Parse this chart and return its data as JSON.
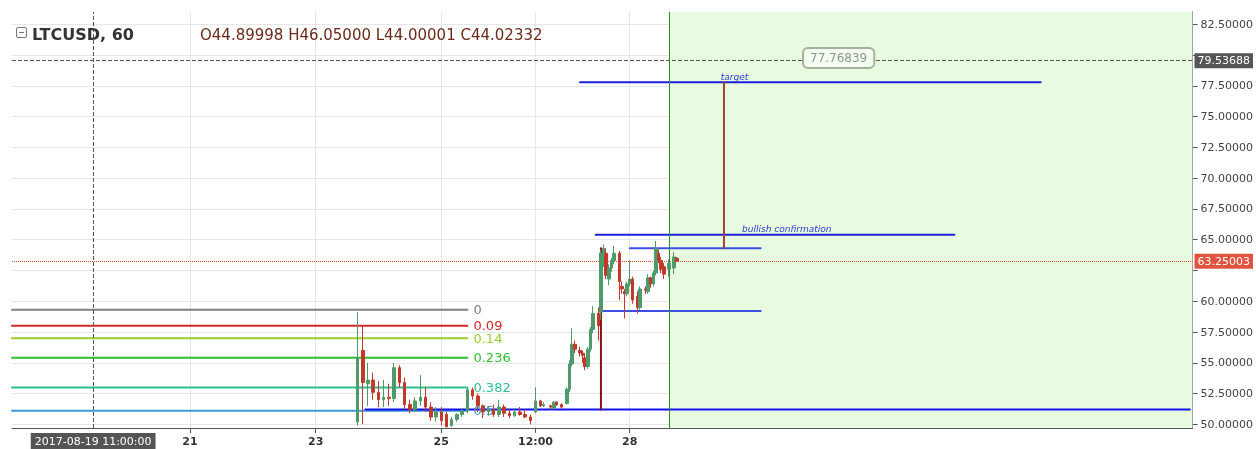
{
  "chart_data": {
    "type": "candlestick",
    "title": "LTCUSD, 60",
    "subtitle": "O44.89998 H46.05000 L44.00001 C44.02332",
    "xlim": [
      "2017-08-18T04:00",
      "2017-09-05T23:00"
    ],
    "xticks": [
      {
        "value": "2017-08-21T00:00",
        "label": "21"
      },
      {
        "value": "2017-08-23T00:00",
        "label": "23"
      },
      {
        "value": "2017-08-25T00:00",
        "label": "25"
      },
      {
        "value": "2017-08-26T12:00",
        "label": "12:00"
      },
      {
        "value": "2017-08-28T00:00",
        "label": "28"
      }
    ],
    "ylim": [
      49.7,
      83.5
    ],
    "yticks": [
      {
        "value": 50,
        "label": "50.00000"
      },
      {
        "value": 52.5,
        "label": "52.50000"
      },
      {
        "value": 55,
        "label": "55.00000"
      },
      {
        "value": 57.5,
        "label": "57.50000"
      },
      {
        "value": 60,
        "label": "60.00000"
      },
      {
        "value": 62.5,
        "label": null
      },
      {
        "value": 65,
        "label": "65.00000"
      },
      {
        "value": 67.5,
        "label": "67.50000"
      },
      {
        "value": 70,
        "label": "70.00000"
      },
      {
        "value": 72.5,
        "label": "72.50000"
      },
      {
        "value": 75,
        "label": "75.00000"
      },
      {
        "value": 77.5,
        "label": "77.50000"
      },
      {
        "value": 80,
        "label": null
      },
      {
        "value": 82.5,
        "label": "82.50000"
      }
    ],
    "grid": true,
    "legend": false,
    "marker": "none",
    "series": [
      {
        "x": [
          "2017-08-23T16:00",
          "2017-08-23T18:00",
          "2017-08-23T20:00",
          "2017-08-23T22:00",
          "2017-08-24T00:00",
          "2017-08-24T02:00",
          "2017-08-24T04:00",
          "2017-08-24T06:00",
          "2017-08-24T08:00",
          "2017-08-24T10:00",
          "2017-08-24T12:00",
          "2017-08-24T14:00",
          "2017-08-24T16:00",
          "2017-08-24T18:00",
          "2017-08-24T20:00",
          "2017-08-24T22:00",
          "2017-08-25T00:00",
          "2017-08-25T02:00",
          "2017-08-25T04:00",
          "2017-08-25T06:00",
          "2017-08-25T08:00",
          "2017-08-25T10:00",
          "2017-08-25T12:00",
          "2017-08-25T14:00",
          "2017-08-25T16:00",
          "2017-08-25T18:00",
          "2017-08-25T20:00",
          "2017-08-25T22:00",
          "2017-08-26T00:00",
          "2017-08-26T02:00",
          "2017-08-26T04:00",
          "2017-08-26T06:00",
          "2017-08-26T08:00",
          "2017-08-26T10:00",
          "2017-08-26T12:00",
          "2017-08-26T14:00",
          "2017-08-26T15:00",
          "2017-08-26T18:00",
          "2017-08-26T19:00",
          "2017-08-26T20:00",
          "2017-08-26T22:00",
          "2017-08-27T00:00",
          "2017-08-27T01:00",
          "2017-08-27T02:00",
          "2017-08-27T03:00",
          "2017-08-27T05:00",
          "2017-08-27T06:00",
          "2017-08-27T07:00",
          "2017-08-27T08:00",
          "2017-08-27T09:00",
          "2017-08-27T10:00",
          "2017-08-27T12:00",
          "2017-08-27T13:00",
          "2017-08-27T14:00",
          "2017-08-27T15:00",
          "2017-08-27T16:00",
          "2017-08-27T17:00",
          "2017-08-27T18:00",
          "2017-08-27T20:00",
          "2017-08-27T21:00",
          "2017-08-27T22:00",
          "2017-08-27T23:00",
          "2017-08-28T00:00",
          "2017-08-28T01:00",
          "2017-08-28T03:00",
          "2017-08-28T04:00",
          "2017-08-28T06:00",
          "2017-08-28T07:00",
          "2017-08-28T08:00",
          "2017-08-28T09:00",
          "2017-08-28T10:00",
          "2017-08-28T11:00",
          "2017-08-28T12:00",
          "2017-08-28T13:00",
          "2017-08-28T15:00",
          "2017-08-28T17:00",
          "2017-08-28T18:00"
        ],
        "ohlc": [
          [
            50.2,
            59.1,
            49.9,
            55.4
          ],
          [
            56.0,
            58.0,
            50.0,
            53.4
          ],
          [
            53.3,
            55.0,
            51.5,
            53.6
          ],
          [
            53.6,
            54.2,
            52.0,
            52.6
          ],
          [
            52.6,
            53.5,
            51.4,
            52.0
          ],
          [
            52.0,
            53.6,
            51.4,
            52.2
          ],
          [
            52.2,
            53.3,
            51.5,
            52.1
          ],
          [
            52.1,
            55.0,
            51.8,
            54.6
          ],
          [
            54.6,
            54.8,
            53.0,
            53.4
          ],
          [
            53.4,
            53.8,
            51.2,
            51.6
          ],
          [
            51.6,
            52.0,
            50.9,
            51.2
          ],
          [
            51.2,
            52.2,
            51.0,
            51.9
          ],
          [
            51.9,
            54.0,
            51.5,
            52.2
          ],
          [
            52.2,
            53.0,
            51.0,
            51.4
          ],
          [
            51.4,
            51.8,
            50.3,
            50.6
          ],
          [
            50.6,
            51.4,
            50.2,
            51.0
          ],
          [
            51.0,
            51.4,
            49.9,
            50.3
          ],
          [
            50.8,
            51.0,
            49.75,
            49.8
          ],
          [
            49.9,
            50.6,
            49.8,
            50.4
          ],
          [
            50.4,
            50.9,
            50.2,
            50.8
          ],
          [
            50.8,
            51.3,
            50.6,
            51.1
          ],
          [
            51.1,
            53.0,
            50.9,
            52.8
          ],
          [
            52.8,
            53.0,
            52.0,
            52.3
          ],
          [
            52.3,
            52.5,
            51.0,
            51.5
          ],
          [
            51.5,
            51.6,
            50.5,
            51.0
          ],
          [
            51.0,
            51.5,
            50.7,
            51.2
          ],
          [
            51.2,
            51.6,
            50.6,
            50.8
          ],
          [
            50.8,
            52.0,
            50.6,
            51.4
          ],
          [
            51.4,
            51.6,
            50.6,
            50.9
          ],
          [
            50.9,
            51.2,
            50.5,
            50.7
          ],
          [
            50.7,
            51.2,
            50.6,
            51.0
          ],
          [
            51.0,
            51.4,
            50.7,
            50.8
          ],
          [
            50.8,
            51.2,
            50.5,
            50.6
          ],
          [
            50.6,
            50.8,
            50.0,
            50.3
          ],
          [
            51.0,
            53.0,
            50.9,
            51.9
          ],
          [
            51.9,
            52.0,
            51.4,
            51.5
          ],
          [
            51.5,
            51.8,
            51.4,
            51.6
          ],
          [
            51.5,
            51.6,
            51.2,
            51.4
          ],
          [
            51.3,
            51.9,
            51.2,
            51.8
          ],
          [
            51.8,
            51.9,
            51.5,
            51.6
          ],
          [
            51.6,
            51.7,
            51.3,
            51.4
          ],
          [
            51.7,
            53.0,
            51.6,
            52.85
          ],
          [
            52.85,
            55.2,
            52.6,
            54.9
          ],
          [
            54.9,
            57.8,
            54.7,
            56.5
          ],
          [
            56.5,
            56.8,
            55.8,
            56.1
          ],
          [
            56.0,
            56.3,
            55.5,
            55.8
          ],
          [
            55.8,
            56.0,
            55.0,
            55.6
          ],
          [
            55.4,
            55.8,
            54.4,
            54.7
          ],
          [
            54.7,
            56.3,
            54.5,
            56.1
          ],
          [
            56.1,
            57.9,
            55.9,
            57.7
          ],
          [
            57.7,
            59.6,
            57.4,
            59.0
          ],
          [
            59.0,
            59.5,
            56.8,
            58.0
          ],
          [
            59.1,
            64.2,
            58.5,
            63.9
          ],
          [
            63.0,
            64.6,
            62.8,
            64.3
          ],
          [
            63.9,
            64.3,
            61.8,
            62.1
          ],
          [
            61.8,
            63.0,
            61.3,
            62.7
          ],
          [
            62.7,
            63.5,
            62.4,
            63.3
          ],
          [
            63.3,
            64.5,
            63.0,
            63.9
          ],
          [
            63.9,
            64.1,
            60.1,
            61.6
          ],
          [
            61.2,
            61.6,
            60.6,
            61.0
          ],
          [
            60.8,
            61.0,
            58.6,
            60.6
          ],
          [
            60.6,
            61.6,
            60.4,
            61.4
          ],
          [
            61.4,
            63.3,
            61.2,
            61.8
          ],
          [
            61.8,
            62.0,
            59.8,
            60.1
          ],
          [
            60.4,
            60.8,
            59.0,
            59.5
          ],
          [
            59.5,
            61.2,
            59.3,
            61.0
          ],
          [
            61.0,
            61.2,
            60.6,
            60.9
          ],
          [
            60.8,
            62.2,
            60.6,
            61.9
          ],
          [
            61.9,
            62.0,
            61.1,
            61.4
          ],
          [
            61.4,
            62.5,
            61.2,
            62.3
          ],
          [
            62.3,
            64.9,
            62.1,
            64.3
          ],
          [
            63.9,
            64.2,
            63.1,
            63.3
          ],
          [
            63.3,
            63.6,
            62.3,
            62.6
          ],
          [
            62.8,
            63.1,
            61.8,
            62.2
          ],
          [
            62.6,
            63.4,
            62.0,
            63.1
          ],
          [
            62.7,
            64.0,
            62.2,
            63.6
          ],
          [
            63.5,
            63.6,
            63.2,
            63.25
          ]
        ],
        "colors": [
          "#4e9a6b",
          "#c0392b",
          "#4e9a6b",
          "#c0392b",
          "#c0392b",
          "#4e9a6b",
          "#c0392b",
          "#4e9a6b",
          "#c0392b",
          "#c0392b",
          "#c0392b",
          "#4e9a6b",
          "#4e9a6b",
          "#c0392b",
          "#c0392b",
          "#4e9a6b",
          "#c0392b",
          "#c0392b",
          "#4e9a6b",
          "#4e9a6b",
          "#4e9a6b",
          "#4e9a6b",
          "#c0392b",
          "#c0392b",
          "#c0392b",
          "#4e9a6b",
          "#c0392b",
          "#4e9a6b",
          "#c0392b",
          "#c0392b",
          "#4e9a6b",
          "#c0392b",
          "#c0392b",
          "#c0392b",
          "#4e9a6b",
          "#c0392b",
          "#4e9a6b",
          "#c0392b",
          "#4e9a6b",
          "#c0392b",
          "#c0392b",
          "#4e9a6b",
          "#4e9a6b",
          "#4e9a6b",
          "#c0392b",
          "#c0392b",
          "#c0392b",
          "#c0392b",
          "#4e9a6b",
          "#4e9a6b",
          "#4e9a6b",
          "#c0392b",
          "#4e9a6b",
          "#4e9a6b",
          "#c0392b",
          "#4e9a6b",
          "#4e9a6b",
          "#4e9a6b",
          "#c0392b",
          "#c0392b",
          "#c0392b",
          "#4e9a6b",
          "#4e9a6b",
          "#c0392b",
          "#c0392b",
          "#4e9a6b",
          "#c0392b",
          "#4e9a6b",
          "#c0392b",
          "#4e9a6b",
          "#4e9a6b",
          "#c0392b",
          "#c0392b",
          "#c0392b",
          "#4e9a6b",
          "#4e9a6b",
          "#c0392b"
        ]
      },
      {
        "type": "line",
        "name": "0",
        "color": "#808080",
        "x": [
          "2017-08-18T04:00",
          "2017-08-25T10:00"
        ],
        "values": [
          59.3,
          59.3
        ]
      },
      {
        "type": "line",
        "name": "0.09",
        "color": "#d62728",
        "x": [
          "2017-08-18T04:00",
          "2017-08-25T10:00"
        ],
        "values": [
          58.0,
          58.0
        ]
      },
      {
        "type": "line",
        "name": "0.14",
        "color": "#9acd32",
        "x": [
          "2017-08-18T04:00",
          "2017-08-25T10:00"
        ],
        "values": [
          57.0,
          57.0
        ]
      },
      {
        "type": "line",
        "name": "0.236",
        "color": "#2fbf2f",
        "x": [
          "2017-08-18T04:00",
          "2017-08-25T10:00"
        ],
        "values": [
          55.4,
          55.4
        ]
      },
      {
        "type": "line",
        "name": "0.382",
        "color": "#2bbf90",
        "x": [
          "2017-08-18T04:00",
          "2017-08-25T10:00"
        ],
        "values": [
          53.0,
          53.0
        ]
      },
      {
        "type": "line",
        "name": "0.5",
        "color": "#3d9bd8",
        "x": [
          "2017-08-18T04:00",
          "2017-08-25T10:00"
        ],
        "values": [
          51.1,
          51.1
        ]
      },
      {
        "type": "line",
        "color": "#1f1fe0",
        "x": [
          "2017-08-27T05:00",
          "2017-09-03T13:00"
        ],
        "values": [
          77.8,
          77.8
        ]
      },
      {
        "type": "line",
        "color": "#1f1fe0",
        "x": [
          "2017-08-27T11:00",
          "2017-09-02T04:00"
        ],
        "values": [
          65.4,
          65.4
        ]
      },
      {
        "type": "line",
        "color": "#3d4fe0",
        "x": [
          "2017-08-28T00:00",
          "2017-08-30T02:00"
        ],
        "values": [
          64.3,
          64.3
        ]
      },
      {
        "type": "line",
        "color": "#3d4fe0",
        "x": [
          "2017-08-27T13:00",
          "2017-08-30T02:00"
        ],
        "values": [
          59.2,
          59.2
        ]
      },
      {
        "type": "line",
        "color": "#1010f0",
        "x": [
          "2017-08-23T19:00",
          "2017-09-05T22:00"
        ],
        "values": [
          51.2,
          51.2
        ]
      },
      {
        "type": "line",
        "color": "#8b1010",
        "x": [
          "2017-08-27T13:00",
          "2017-08-27T13:00"
        ],
        "values": [
          51.2,
          64.3
        ]
      },
      {
        "type": "line",
        "color": "#a0452e",
        "x": [
          "2017-08-29T12:00",
          "2017-08-29T12:00"
        ],
        "values": [
          64.3,
          77.8
        ]
      }
    ],
    "ref_lines": [
      {
        "axis": "x",
        "value": "2017-08-19T11:00",
        "label": "2017-08-19 11:00:00",
        "color": "#555555",
        "line_style": "dashed"
      },
      {
        "axis": "y",
        "value": 79.53688,
        "label": "79.53688",
        "color": "#555555",
        "line_style": "dashed"
      },
      {
        "axis": "y",
        "value": 63.25003,
        "label": "63.25003",
        "color": "#e0533e",
        "line_style": "dotted"
      },
      {
        "axis": "x",
        "value": "2017-08-28T15:00",
        "label": null,
        "color": "#2e8b2e",
        "line_style": "solid"
      }
    ],
    "bands": [
      {
        "axis": "x",
        "from": "2017-08-28T15:00",
        "to": "2017-09-05T23:00",
        "label": null,
        "color": "#e8fbe0"
      }
    ],
    "annotations": [
      {
        "text": "target",
        "x": "2017-08-29T16:00",
        "y": 77.8
      },
      "77.76839",
      {
        "text": "bullish confirmation",
        "x": "2017-08-30T12:00",
        "y": 65.4
      }
    ]
  }
}
